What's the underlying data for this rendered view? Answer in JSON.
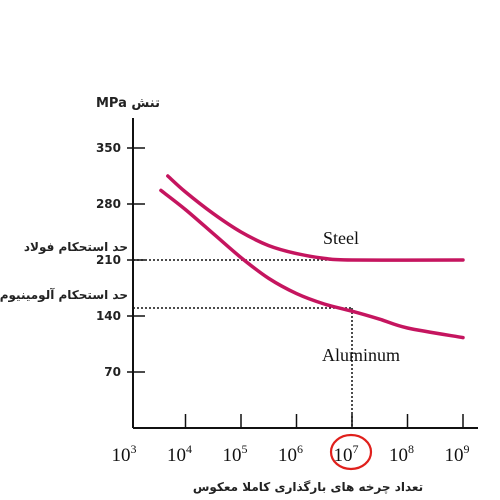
{
  "chart_data": {
    "type": "line",
    "title": "",
    "ylabel": "MPa تنش",
    "xlabel": "تعداد چرخه های بارگذاری کاملا معکوس",
    "x_scale": "log",
    "xlim": [
      1000,
      1000000000
    ],
    "ylim": [
      0,
      420
    ],
    "y_ticks": [
      70,
      140,
      210,
      280,
      350
    ],
    "x_ticks": [
      {
        "base": "10",
        "exp": "3"
      },
      {
        "base": "10",
        "exp": "4"
      },
      {
        "base": "10",
        "exp": "5"
      },
      {
        "base": "10",
        "exp": "6"
      },
      {
        "base": "10",
        "exp": "7"
      },
      {
        "base": "10",
        "exp": "8"
      },
      {
        "base": "10",
        "exp": "9"
      }
    ],
    "highlighted_x_tick": "10^7",
    "series": [
      {
        "name": "Steel",
        "color": "#c5155f",
        "points": [
          [
            4800,
            315
          ],
          [
            10000,
            295
          ],
          [
            31600,
            268
          ],
          [
            100000,
            245
          ],
          [
            316000,
            228
          ],
          [
            1000000,
            218
          ],
          [
            3160000,
            212
          ],
          [
            10000000,
            210
          ],
          [
            1000000000,
            210
          ]
        ]
      },
      {
        "name": "Aluminum",
        "color": "#c5155f",
        "points": [
          [
            3600,
            297
          ],
          [
            10000,
            273
          ],
          [
            31600,
            243
          ],
          [
            100000,
            213
          ],
          [
            316000,
            187
          ],
          [
            1000000,
            168
          ],
          [
            3160000,
            155
          ],
          [
            10000000,
            146
          ],
          [
            31600000,
            136
          ],
          [
            100000000,
            125
          ],
          [
            1000000000,
            113
          ]
        ]
      }
    ],
    "annotations": [
      {
        "text": "حد استحکام فولاد",
        "y": 210,
        "x_end": 1000000000
      },
      {
        "text": "حد استحکام آلومینیوم",
        "y": 150,
        "x_end": 10000000,
        "drop_to_x_axis": true
      }
    ]
  }
}
